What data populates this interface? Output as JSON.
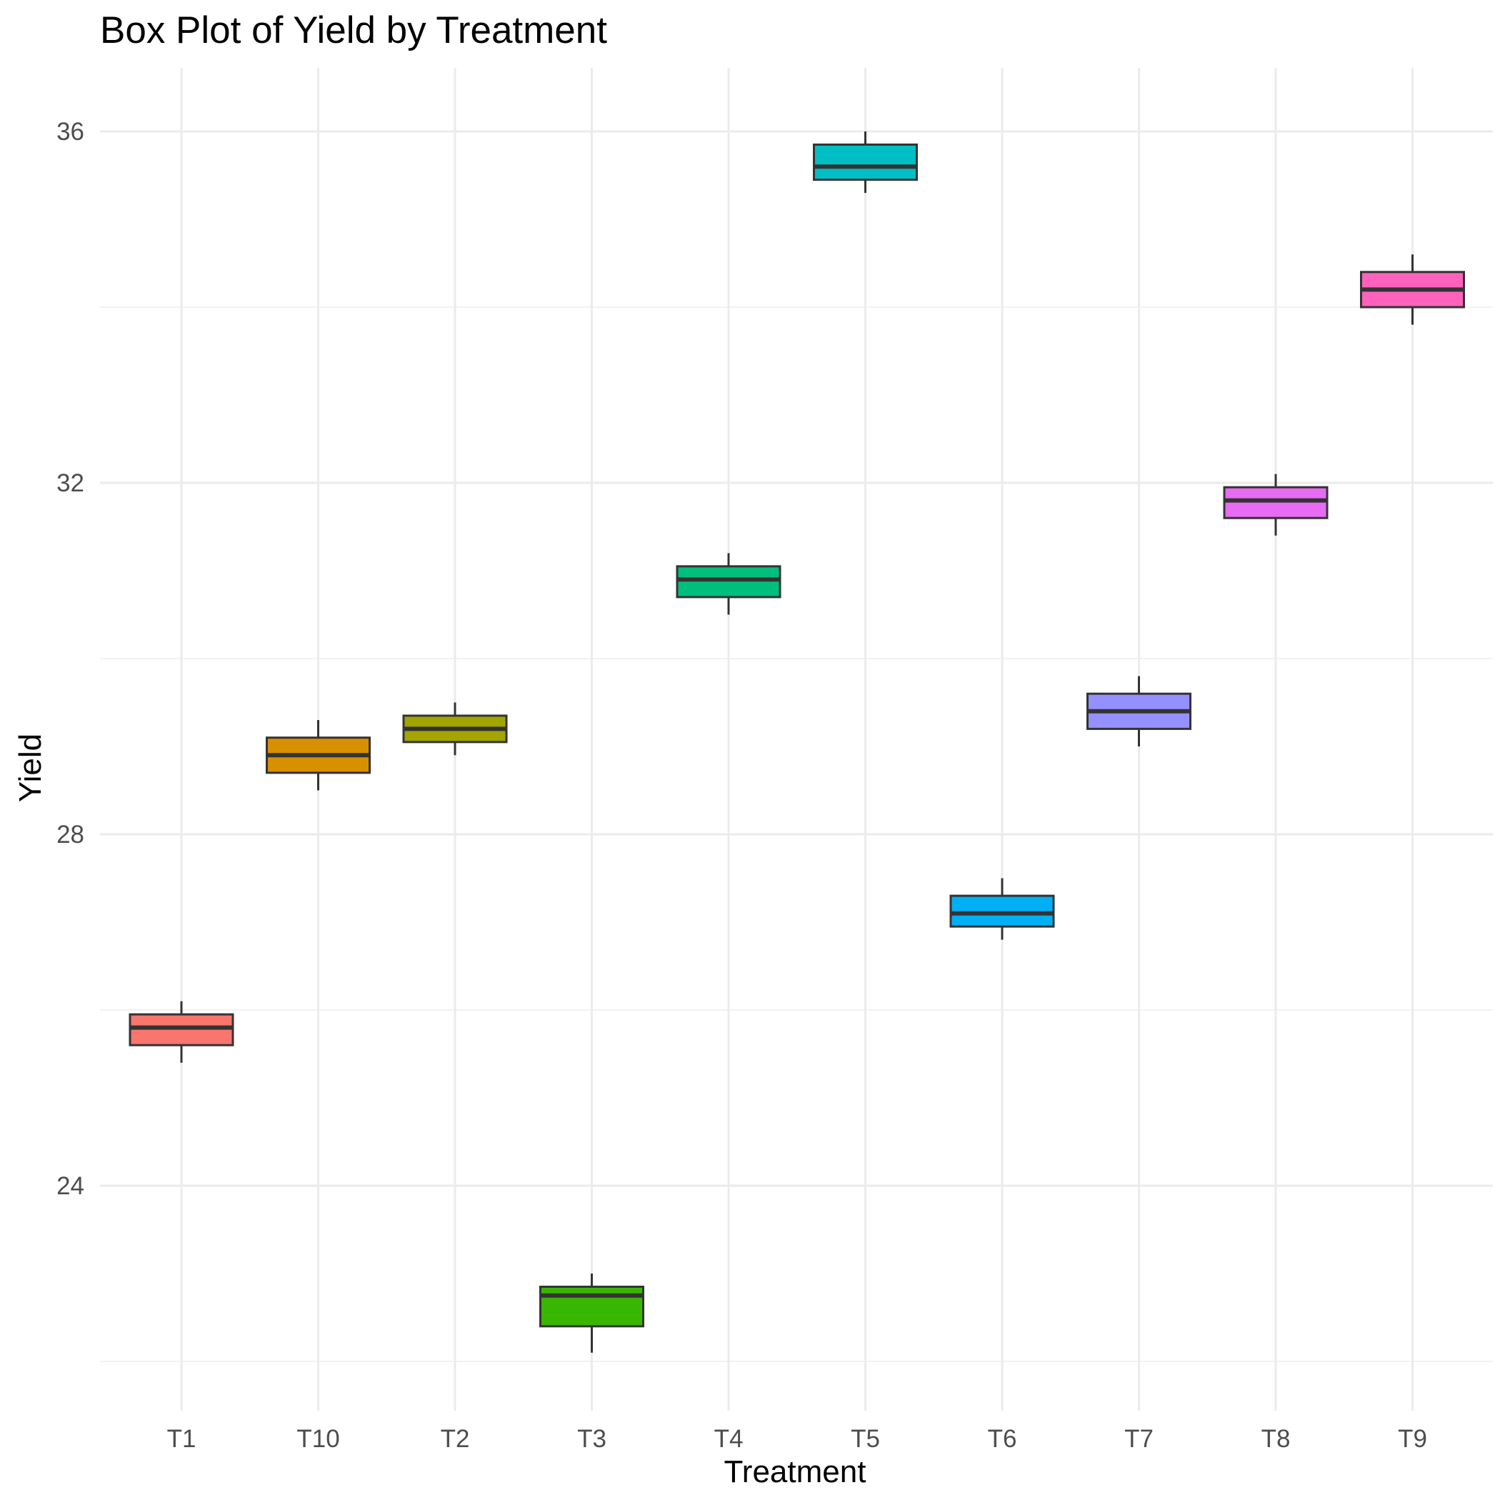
{
  "chart_data": {
    "type": "box",
    "title": "Box Plot of Yield by Treatment",
    "xlabel": "Treatment",
    "ylabel": "Yield",
    "categories": [
      "T1",
      "T10",
      "T2",
      "T3",
      "T4",
      "T5",
      "T6",
      "T7",
      "T8",
      "T9"
    ],
    "y_ticks": [
      24,
      28,
      32,
      36
    ],
    "y_tick_labels": [
      "24",
      "28",
      "32",
      "36"
    ],
    "ylim": [
      21.5,
      36.7
    ],
    "grid": true,
    "legend": "none",
    "boxes": [
      {
        "name": "T1",
        "min": 25.4,
        "q1": 25.6,
        "median": 25.8,
        "q3": 25.95,
        "max": 26.1,
        "color": "#F8766D"
      },
      {
        "name": "T10",
        "min": 28.5,
        "q1": 28.7,
        "median": 28.9,
        "q3": 29.1,
        "max": 29.3,
        "color": "#D89000"
      },
      {
        "name": "T2",
        "min": 28.9,
        "q1": 29.05,
        "median": 29.2,
        "q3": 29.35,
        "max": 29.5,
        "color": "#A3A500"
      },
      {
        "name": "T3",
        "min": 22.1,
        "q1": 22.4,
        "median": 22.75,
        "q3": 22.85,
        "max": 23.0,
        "color": "#39B600"
      },
      {
        "name": "T4",
        "min": 30.5,
        "q1": 30.7,
        "median": 30.9,
        "q3": 31.05,
        "max": 31.2,
        "color": "#00BF7D"
      },
      {
        "name": "T5",
        "min": 35.3,
        "q1": 35.45,
        "median": 35.6,
        "q3": 35.85,
        "max": 36.0,
        "color": "#00BFC4"
      },
      {
        "name": "T6",
        "min": 26.8,
        "q1": 26.95,
        "median": 27.1,
        "q3": 27.3,
        "max": 27.5,
        "color": "#00B0F6"
      },
      {
        "name": "T7",
        "min": 29.0,
        "q1": 29.2,
        "median": 29.4,
        "q3": 29.6,
        "max": 29.8,
        "color": "#9590FF"
      },
      {
        "name": "T8",
        "min": 31.4,
        "q1": 31.6,
        "median": 31.8,
        "q3": 31.95,
        "max": 32.1,
        "color": "#E76BF3"
      },
      {
        "name": "T9",
        "min": 33.8,
        "q1": 34.0,
        "median": 34.2,
        "q3": 34.4,
        "max": 34.6,
        "color": "#FF62BC"
      }
    ],
    "colors": {
      "background": "#ffffff",
      "grid_major": "#EBEBEB",
      "grid_minor": "#F2F2F2",
      "box_outline": "#333333",
      "tick_text": "#4d4d4d",
      "title_text": "#000000"
    }
  }
}
